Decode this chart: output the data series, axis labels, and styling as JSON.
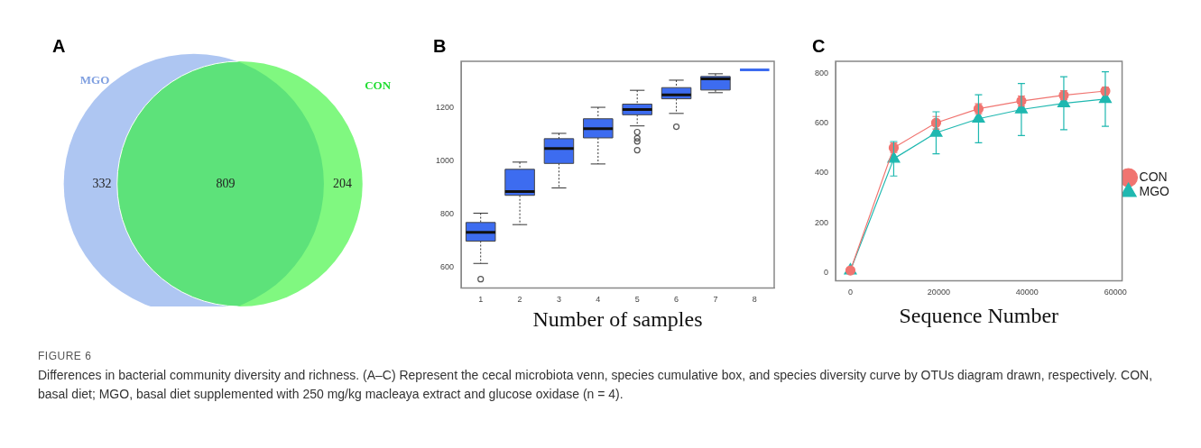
{
  "chart_data": [
    {
      "type": "other",
      "title": "A",
      "categories": [
        "MGO",
        null,
        "CON"
      ],
      "values": [
        332,
        809,
        204
      ],
      "colors": [
        "#aec6f2",
        "#5de27a",
        "#80f880"
      ],
      "data_labels": true,
      "annotations": [
        "FIGURE 6",
        "Differences in bacterial community diversity and richness. (A–C) Represent the cecal microbiota venn, species cumulative box, and species diversity curve by OTUs diagram drawn, respectively. CON, basal diet; MGO, basal diet supplemented with 250 mg/kg macleaya extract and glucose oxidase (n = 4)."
      ]
    },
    {
      "type": "box",
      "title": "B",
      "xlabel": "Number of samples",
      "color": "#3d6cf0",
      "categories": [
        "1",
        "2",
        "3",
        "4",
        "5",
        "6",
        "7",
        "8"
      ],
      "ylim": [
        524,
        1376
      ],
      "yticks": [
        600,
        800,
        1000,
        1200
      ],
      "grid": false,
      "boxes": [
        {
          "low": 616,
          "q1": 700,
          "median": 733,
          "q3": 770,
          "high": 805,
          "outliers": [
            557
          ]
        },
        {
          "low": 762,
          "q1": 872,
          "median": 886,
          "q3": 970,
          "high": 997
        },
        {
          "low": 900,
          "q1": 992,
          "median": 1048,
          "q3": 1085,
          "high": 1105
        },
        {
          "low": 990,
          "q1": 1088,
          "median": 1123,
          "q3": 1160,
          "high": 1203
        },
        {
          "low": 1133,
          "q1": 1175,
          "median": 1195,
          "q3": 1215,
          "high": 1267,
          "outliers": [
            1110,
            1087,
            1075,
            1042
          ]
        },
        {
          "low": 1180,
          "q1": 1235,
          "median": 1250,
          "q3": 1277,
          "high": 1305,
          "outliers": [
            1130
          ]
        },
        {
          "low": 1258,
          "q1": 1268,
          "median": 1310,
          "q3": 1319,
          "high": 1329
        },
        {
          "low": 1344,
          "q1": 1344,
          "median": 1344,
          "q3": 1344,
          "high": 1344
        }
      ]
    },
    {
      "type": "line",
      "title": "C",
      "xlabel": "Sequence Number",
      "xlim": [
        -3360,
        61500
      ],
      "xticks": [
        0,
        20000,
        40000,
        60000
      ],
      "ylim": [
        -31,
        847
      ],
      "yticks": [
        0,
        200,
        400,
        600,
        800
      ],
      "grid": false,
      "legend": "right",
      "series": [
        {
          "name": "CON",
          "color": "#f07470",
          "marker": "circle",
          "x": [
            0,
            9800,
            19400,
            29000,
            38700,
            48300,
            57700
          ],
          "values": [
            10,
            501,
            601,
            657,
            688,
            711,
            728
          ],
          "errors": [
            null,
            19,
            25,
            20,
            20,
            18,
            15
          ]
        },
        {
          "name": "MGO",
          "color": "#1fb8b0",
          "marker": "triangle",
          "x": [
            0,
            9800,
            19400,
            29000,
            38700,
            48300,
            57700
          ],
          "values": [
            10,
            457,
            561,
            617,
            654,
            679,
            696
          ],
          "errors": [
            null,
            69,
            84,
            96,
            104,
            106,
            109
          ]
        }
      ]
    }
  ]
}
